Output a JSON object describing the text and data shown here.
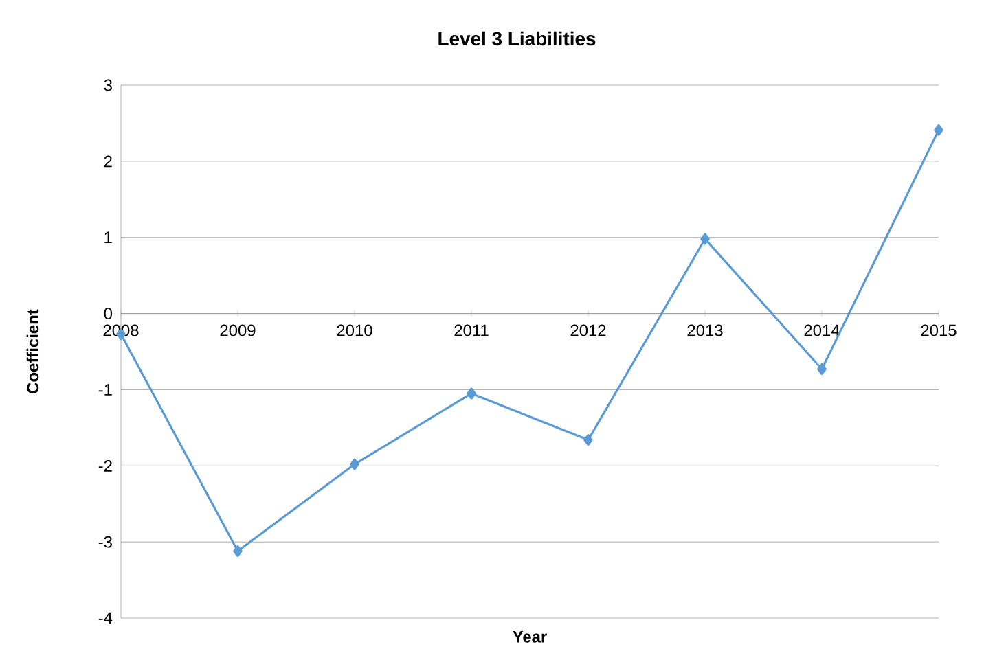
{
  "chart_data": {
    "type": "line",
    "title": "Level 3 Liabilities",
    "xlabel": "Year",
    "ylabel": "Coefficient",
    "categories": [
      "2008",
      "2009",
      "2010",
      "2011",
      "2012",
      "2013",
      "2014",
      "2015"
    ],
    "series": [
      {
        "color": "#5b9bd5",
        "values": [
          -0.27,
          -3.12,
          -1.98,
          -1.05,
          -1.66,
          0.98,
          -0.73,
          2.41
        ]
      }
    ],
    "ylim": [
      -4,
      3
    ],
    "yticks": [
      -4,
      -3,
      -2,
      -1,
      0,
      1,
      2,
      3
    ],
    "grid": "y",
    "marker": "diamond",
    "line_style": "solid"
  }
}
